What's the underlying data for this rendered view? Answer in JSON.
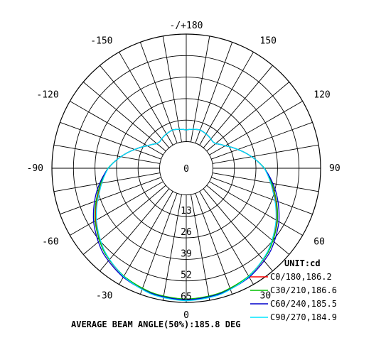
{
  "chart_data": {
    "type": "polar",
    "unit_label": "UNIT:cd",
    "angle_labels": [
      {
        "angle": 180,
        "text": "-/+180"
      },
      {
        "angle": 150,
        "text": "150"
      },
      {
        "angle": -150,
        "text": "-150"
      },
      {
        "angle": 120,
        "text": "120"
      },
      {
        "angle": -120,
        "text": "-120"
      },
      {
        "angle": 90,
        "text": "90"
      },
      {
        "angle": -90,
        "text": "-90"
      },
      {
        "angle": 60,
        "text": "60"
      },
      {
        "angle": -60,
        "text": "-60"
      },
      {
        "angle": 30,
        "text": "30"
      },
      {
        "angle": -30,
        "text": "-30"
      },
      {
        "angle": 0,
        "text": "0"
      }
    ],
    "radial_ticks": [
      "0",
      "13",
      "26",
      "39",
      "52",
      "65"
    ],
    "radial_max": 65,
    "series": [
      {
        "name": "C0/180,186.2",
        "color": "#ff0000",
        "profile": [
          [
            0,
            63.5
          ],
          [
            15,
            62.5
          ],
          [
            30,
            59.5
          ],
          [
            45,
            54.5
          ],
          [
            60,
            47
          ],
          [
            75,
            38.5
          ],
          [
            90,
            31
          ],
          [
            100,
            24
          ],
          [
            110,
            17
          ],
          [
            120,
            11
          ],
          [
            130,
            7
          ],
          [
            135,
            6.5
          ],
          [
            145,
            7.5
          ],
          [
            160,
            8.5
          ],
          [
            175,
            7.5
          ],
          [
            180,
            7
          ]
        ]
      },
      {
        "name": "C30/210,186.6",
        "color": "#00c000",
        "profile": [
          [
            0,
            63
          ],
          [
            15,
            62
          ],
          [
            30,
            59.2
          ],
          [
            45,
            54.5
          ],
          [
            60,
            47.5
          ],
          [
            75,
            39
          ],
          [
            90,
            31.2
          ],
          [
            100,
            24
          ],
          [
            110,
            17
          ],
          [
            120,
            11
          ],
          [
            130,
            7
          ],
          [
            135,
            6.5
          ],
          [
            145,
            7.5
          ],
          [
            160,
            8.5
          ],
          [
            175,
            7.5
          ],
          [
            180,
            7
          ]
        ]
      },
      {
        "name": "C60/240,185.5",
        "color": "#0000cc",
        "profile": [
          [
            0,
            63.5
          ],
          [
            15,
            62.5
          ],
          [
            30,
            60
          ],
          [
            45,
            55.5
          ],
          [
            60,
            48.5
          ],
          [
            75,
            40
          ],
          [
            90,
            31
          ],
          [
            100,
            24
          ],
          [
            110,
            17
          ],
          [
            120,
            11
          ],
          [
            130,
            7
          ],
          [
            135,
            6.5
          ],
          [
            145,
            7.5
          ],
          [
            160,
            8.5
          ],
          [
            175,
            7.5
          ],
          [
            180,
            7
          ]
        ]
      },
      {
        "name": "C90/270,184.9",
        "color": "#00e5ff",
        "profile": [
          [
            0,
            64
          ],
          [
            15,
            63
          ],
          [
            30,
            59.5
          ],
          [
            45,
            54
          ],
          [
            60,
            46.5
          ],
          [
            75,
            38
          ],
          [
            90,
            31
          ],
          [
            100,
            24
          ],
          [
            110,
            17
          ],
          [
            120,
            11
          ],
          [
            130,
            7
          ],
          [
            135,
            6.5
          ],
          [
            145,
            7.5
          ],
          [
            160,
            8.5
          ],
          [
            175,
            7.5
          ],
          [
            180,
            7
          ]
        ]
      }
    ]
  },
  "footer": "AVERAGE BEAM ANGLE(50%):185.8 DEG"
}
